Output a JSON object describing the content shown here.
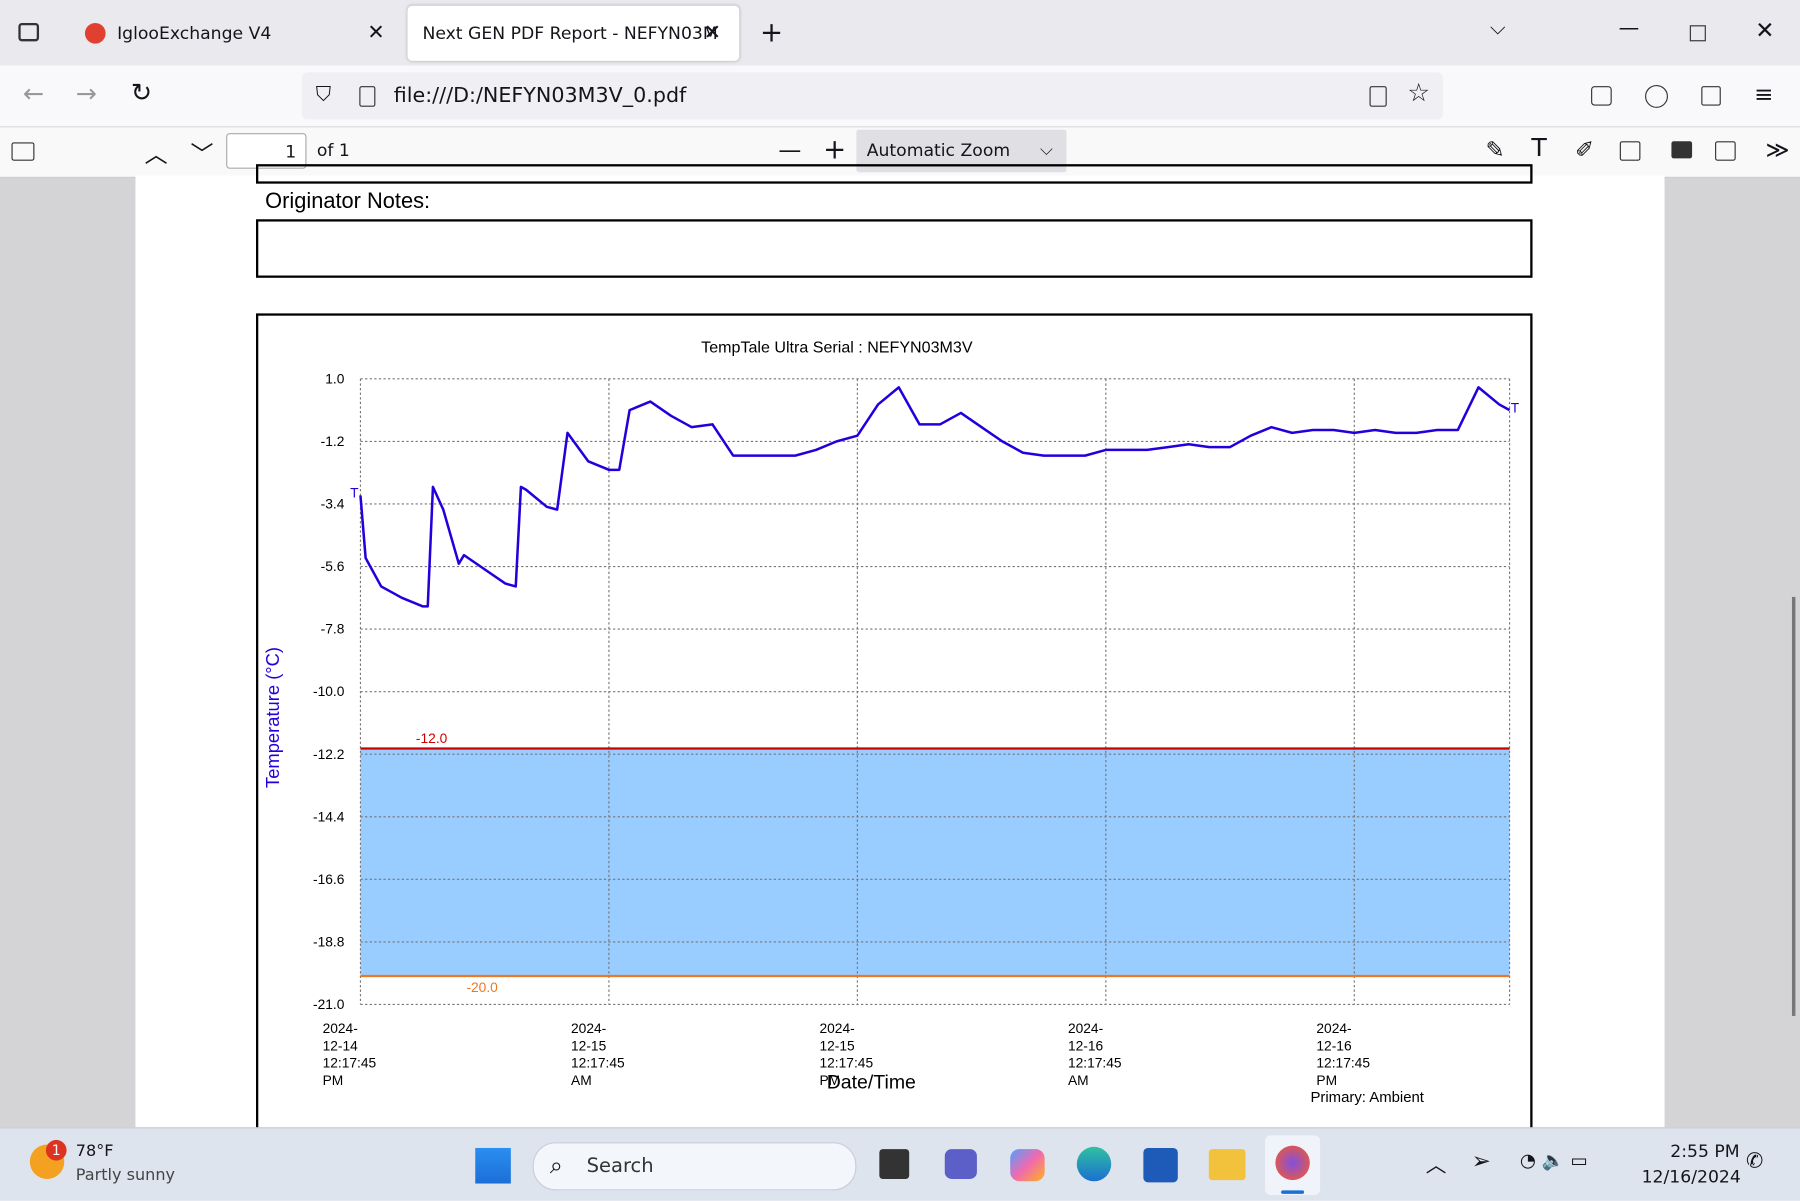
{
  "browser": {
    "tabs": [
      "IglooExchange V4",
      "Next GEN PDF Report - NEFYN03M"
    ],
    "url": "file:///D:/NEFYN03M3V_0.pdf"
  },
  "pdf_toolbar": {
    "page": "1",
    "page_count": "of 1",
    "zoom": "Automatic Zoom"
  },
  "document": {
    "notes_label": "Originator Notes:"
  },
  "chart_data": {
    "type": "line",
    "title": "TempTale Ultra  Serial : NEFYN03M3V",
    "ylabel": "Temperature    (°C)",
    "xlabel": "Date/Time",
    "footnote": "Primary: Ambient",
    "markers": [
      "T",
      "T"
    ],
    "x": [
      "2024-12-14T12:17:45",
      "2024-12-14T12:32:45",
      "2024-12-14T13:17:45",
      "2024-12-14T14:17:45",
      "2024-12-14T15:17:45",
      "2024-12-14T15:32:45",
      "2024-12-14T15:47:45",
      "2024-12-14T16:17:45",
      "2024-12-14T17:02:45",
      "2024-12-14T17:17:45",
      "2024-12-14T18:17:45",
      "2024-12-14T19:17:45",
      "2024-12-14T19:47:45",
      "2024-12-14T20:02:45",
      "2024-12-14T20:17:45",
      "2024-12-14T21:17:45",
      "2024-12-14T21:47:45",
      "2024-12-14T22:17:45",
      "2024-12-14T23:17:45",
      "2024-12-15T00:17:45",
      "2024-12-15T00:47:45",
      "2024-12-15T01:17:45",
      "2024-12-15T02:17:45",
      "2024-12-15T03:17:45",
      "2024-12-15T04:17:45",
      "2024-12-15T05:17:45",
      "2024-12-15T06:17:45",
      "2024-12-15T07:17:45",
      "2024-12-15T08:17:45",
      "2024-12-15T09:17:45",
      "2024-12-15T10:17:45",
      "2024-12-15T11:17:45",
      "2024-12-15T12:17:45",
      "2024-12-15T13:17:45",
      "2024-12-15T14:17:45",
      "2024-12-15T15:17:45",
      "2024-12-15T16:17:45",
      "2024-12-15T17:17:45",
      "2024-12-15T18:17:45",
      "2024-12-15T19:17:45",
      "2024-12-15T20:17:45",
      "2024-12-15T21:17:45",
      "2024-12-15T22:17:45",
      "2024-12-15T23:17:45",
      "2024-12-16T00:17:45",
      "2024-12-16T01:17:45",
      "2024-12-16T02:17:45",
      "2024-12-16T03:17:45",
      "2024-12-16T04:17:45",
      "2024-12-16T05:17:45",
      "2024-12-16T06:17:45",
      "2024-12-16T07:17:45",
      "2024-12-16T08:17:45",
      "2024-12-16T09:17:45",
      "2024-12-16T10:17:45",
      "2024-12-16T11:17:45",
      "2024-12-16T12:17:45",
      "2024-12-16T13:17:45",
      "2024-12-16T14:17:45",
      "2024-12-16T15:17:45",
      "2024-12-16T16:17:45",
      "2024-12-16T17:17:45",
      "2024-12-16T18:17:45",
      "2024-12-16T19:17:45",
      "2024-12-16T19:47:45"
    ],
    "series": [
      {
        "name": "Primary: Ambient",
        "color": "#2200dd",
        "values": [
          -3.1,
          -5.3,
          -6.3,
          -6.7,
          -7.0,
          -7.0,
          -2.8,
          -3.6,
          -5.5,
          -5.2,
          -5.7,
          -6.2,
          -6.3,
          -2.8,
          -2.9,
          -3.5,
          -3.6,
          -0.9,
          -1.9,
          -2.2,
          -2.2,
          -0.1,
          0.2,
          -0.3,
          -0.7,
          -0.6,
          -1.7,
          -1.7,
          -1.7,
          -1.7,
          -1.5,
          -1.2,
          -1.0,
          0.1,
          0.7,
          -0.6,
          -0.6,
          -0.2,
          -0.7,
          -1.2,
          -1.6,
          -1.7,
          -1.7,
          -1.7,
          -1.5,
          -1.5,
          -1.5,
          -1.4,
          -1.3,
          -1.4,
          -1.4,
          -1.0,
          -0.7,
          -0.9,
          -0.8,
          -0.8,
          -0.9,
          -0.8,
          -0.9,
          -0.9,
          -0.8,
          -0.8,
          0.7,
          0.1,
          -0.1
        ]
      }
    ],
    "thresholds": [
      {
        "value": -12,
        "label": "-12.0",
        "color": "#cc0000"
      },
      {
        "value": -20,
        "label": "-20.0",
        "color": "#ee7722"
      }
    ],
    "band_color": "#99ccff",
    "xlim": [
      "2024-12-14T12:17:45",
      "2024-12-16T19:47:45"
    ],
    "xticks": [
      {
        "value": "2024-12-14T12:17:45",
        "label": "2024-12-14\n12:17:45 PM"
      },
      {
        "value": "2024-12-15T00:17:45",
        "label": "2024-12-15\n12:17:45 AM"
      },
      {
        "value": "2024-12-15T12:17:45",
        "label": "2024-12-15\n12:17:45 PM"
      },
      {
        "value": "2024-12-16T00:17:45",
        "label": "2024-12-16\n12:17:45 AM"
      },
      {
        "value": "2024-12-16T12:17:45",
        "label": "2024-12-16\n12:17:45 PM"
      }
    ],
    "ylim": [
      -21,
      1
    ],
    "yticks": [
      {
        "value": 1,
        "label": "1.0"
      },
      -1.2,
      -3.4,
      -5.6,
      -7.8,
      {
        "value": -10,
        "label": "-10.0"
      },
      -12.2,
      -14.4,
      -16.6,
      -18.8,
      {
        "value": -21,
        "label": "-21.0"
      }
    ],
    "grid": true
  },
  "taskbar": {
    "temperature": "78°F",
    "weather": "Partly sunny",
    "search": "Search",
    "badge": "1",
    "time": "2:55 PM",
    "date": "12/16/2024"
  }
}
